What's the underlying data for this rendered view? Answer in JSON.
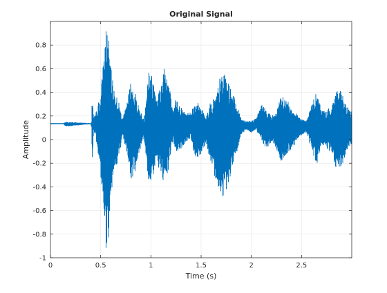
{
  "chart_data": {
    "type": "line",
    "title": "Original Signal",
    "xlabel": "Time (s)",
    "ylabel": "Amplitude",
    "xlim": [
      0,
      3
    ],
    "ylim": [
      -1,
      1
    ],
    "x_ticks": [
      0,
      0.5,
      1,
      1.5,
      2,
      2.5
    ],
    "x_tick_labels": [
      "0",
      "0.5",
      "1",
      "1.5",
      "2",
      "2.5"
    ],
    "y_ticks": [
      -1,
      -0.8,
      -0.6,
      -0.4,
      -0.2,
      0,
      0.2,
      0.4,
      0.6,
      0.8
    ],
    "y_tick_labels": [
      "-1",
      "-0.8",
      "-0.6",
      "-0.4",
      "-0.2",
      "0",
      "0.2",
      "0.4",
      "0.6",
      "0.8"
    ],
    "grid": true,
    "series_color": "#0072BD",
    "envelope": {
      "time": [
        0,
        0.13,
        0.15,
        0.4,
        0.41,
        0.415,
        0.43,
        0.45,
        0.5,
        0.53,
        0.55,
        0.56,
        0.58,
        0.6,
        0.63,
        0.68,
        0.72,
        0.76,
        0.8,
        0.84,
        0.88,
        0.93,
        0.98,
        1.02,
        1.06,
        1.1,
        1.13,
        1.15,
        1.18,
        1.2,
        1.22,
        1.25,
        1.3,
        1.35,
        1.4,
        1.45,
        1.5,
        1.55,
        1.6,
        1.65,
        1.7,
        1.75,
        1.8,
        1.85,
        1.9,
        1.95,
        2.0,
        2.05,
        2.1,
        2.15,
        2.2,
        2.25,
        2.3,
        2.35,
        2.4,
        2.45,
        2.5,
        2.55,
        2.6,
        2.65,
        2.7,
        2.75,
        2.8,
        2.85,
        2.9,
        2.95,
        3.0
      ],
      "upper": [
        0.14,
        0.14,
        0.15,
        0.14,
        0.15,
        0.41,
        0.18,
        0.22,
        0.4,
        0.7,
        0.98,
        0.95,
        0.86,
        0.62,
        0.45,
        0.32,
        0.18,
        0.3,
        0.5,
        0.42,
        0.28,
        0.17,
        0.62,
        0.52,
        0.4,
        0.46,
        0.66,
        0.6,
        0.5,
        0.36,
        0.22,
        0.36,
        0.28,
        0.22,
        0.25,
        0.33,
        0.28,
        0.2,
        0.34,
        0.38,
        0.58,
        0.54,
        0.42,
        0.32,
        0.18,
        0.16,
        0.16,
        0.18,
        0.3,
        0.26,
        0.2,
        0.24,
        0.38,
        0.34,
        0.28,
        0.22,
        0.18,
        0.16,
        0.3,
        0.4,
        0.26,
        0.24,
        0.3,
        0.44,
        0.4,
        0.28,
        0.24
      ],
      "lower": [
        0.13,
        0.13,
        0.11,
        0.13,
        0.1,
        -0.22,
        0.08,
        0.02,
        -0.3,
        -0.6,
        -0.92,
        -0.98,
        -0.78,
        -0.48,
        -0.3,
        -0.16,
        0.02,
        -0.1,
        -0.36,
        -0.28,
        -0.12,
        0.02,
        -0.4,
        -0.32,
        -0.2,
        -0.3,
        -0.42,
        -0.38,
        -0.24,
        -0.1,
        0.0,
        -0.12,
        -0.08,
        -0.02,
        0.0,
        -0.18,
        -0.12,
        -0.02,
        -0.24,
        -0.34,
        -0.5,
        -0.44,
        -0.28,
        -0.14,
        0.04,
        0.08,
        0.06,
        0.08,
        0.0,
        -0.08,
        -0.02,
        -0.08,
        -0.2,
        -0.14,
        -0.08,
        -0.02,
        0.04,
        0.06,
        -0.08,
        -0.22,
        -0.04,
        -0.08,
        -0.12,
        -0.28,
        -0.24,
        -0.1,
        -0.04
      ]
    }
  }
}
